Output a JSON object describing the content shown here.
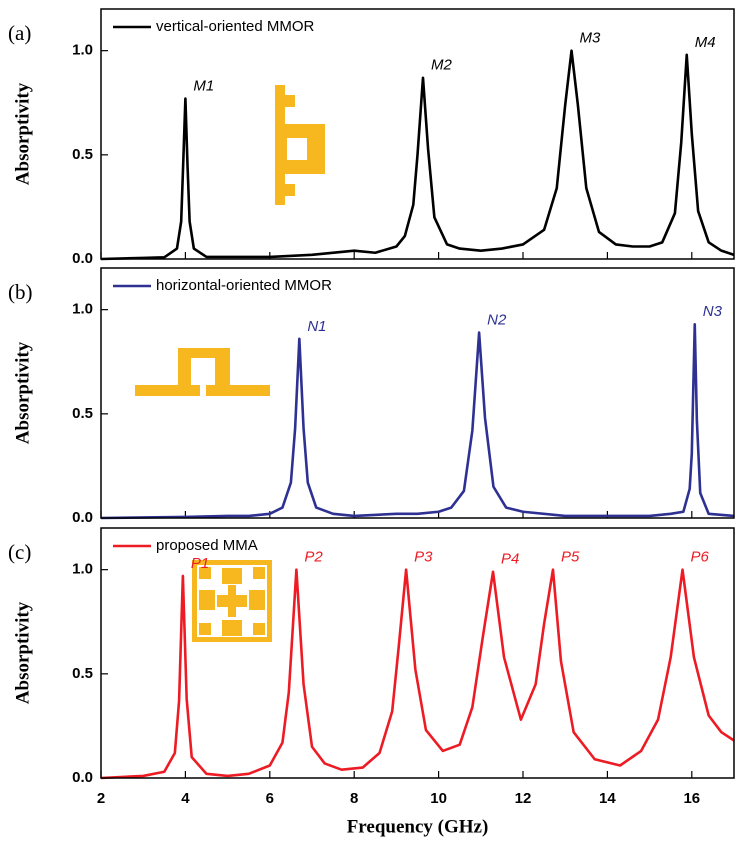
{
  "chart_data": [
    {
      "type": "line",
      "label": "(a)",
      "ylabel": "Absorptivity",
      "xlim": [
        2,
        17
      ],
      "ylim": [
        0,
        1.2
      ],
      "yticks": [
        {
          "value": 0,
          "label": "0.0"
        },
        {
          "value": 0.5,
          "label": "0.5"
        },
        {
          "value": 1,
          "label": "1.0"
        }
      ],
      "x": [
        2,
        3,
        3.5,
        3.8,
        3.9,
        3.95,
        4.0,
        4.05,
        4.1,
        4.2,
        4.5,
        5,
        6,
        7,
        8,
        8.5,
        9,
        9.2,
        9.4,
        9.5,
        9.63,
        9.75,
        9.9,
        10.2,
        10.5,
        11,
        11.5,
        12,
        12.5,
        12.8,
        13,
        13.15,
        13.3,
        13.5,
        13.8,
        14.2,
        14.6,
        15,
        15.3,
        15.6,
        15.75,
        15.88,
        16.0,
        16.15,
        16.4,
        16.7,
        17
      ],
      "series": [
        {
          "name": "vertical-oriented MMOR",
          "color": "#000000",
          "values": [
            0,
            0.005,
            0.008,
            0.05,
            0.18,
            0.47,
            0.77,
            0.45,
            0.18,
            0.05,
            0.01,
            0.01,
            0.01,
            0.02,
            0.04,
            0.03,
            0.06,
            0.11,
            0.26,
            0.5,
            0.87,
            0.53,
            0.2,
            0.07,
            0.05,
            0.04,
            0.05,
            0.07,
            0.14,
            0.34,
            0.74,
            1.0,
            0.74,
            0.34,
            0.13,
            0.07,
            0.06,
            0.06,
            0.08,
            0.22,
            0.56,
            0.98,
            0.6,
            0.23,
            0.08,
            0.04,
            0.02
          ]
        }
      ],
      "annotations": [
        {
          "text": "M1",
          "x": 4.0,
          "y": 0.77
        },
        {
          "text": "M2",
          "x": 9.63,
          "y": 0.87
        },
        {
          "text": "M3",
          "x": 13.15,
          "y": 1.0
        },
        {
          "text": "M4",
          "x": 15.88,
          "y": 0.98
        }
      ]
    },
    {
      "type": "line",
      "label": "(b)",
      "ylabel": "Absorptivity",
      "xlim": [
        2,
        17
      ],
      "ylim": [
        0,
        1.2
      ],
      "yticks": [
        {
          "value": 0,
          "label": "0.0"
        },
        {
          "value": 0.5,
          "label": "0.5"
        },
        {
          "value": 1,
          "label": "1.0"
        }
      ],
      "x": [
        2,
        4,
        5,
        5.5,
        6,
        6.3,
        6.5,
        6.6,
        6.7,
        6.8,
        6.9,
        7.1,
        7.5,
        8,
        9,
        9.5,
        10,
        10.3,
        10.6,
        10.8,
        10.96,
        11.1,
        11.3,
        11.6,
        12,
        13,
        14,
        15,
        15.5,
        15.8,
        15.95,
        16.0,
        16.07,
        16.12,
        16.2,
        16.4,
        17
      ],
      "series": [
        {
          "name": "horizontal-oriented MMOR",
          "color": "#2e3192",
          "values": [
            0,
            0.005,
            0.01,
            0.01,
            0.02,
            0.05,
            0.17,
            0.43,
            0.86,
            0.43,
            0.17,
            0.05,
            0.02,
            0.01,
            0.02,
            0.02,
            0.03,
            0.05,
            0.13,
            0.42,
            0.89,
            0.48,
            0.15,
            0.05,
            0.03,
            0.01,
            0.01,
            0.01,
            0.02,
            0.03,
            0.14,
            0.31,
            0.93,
            0.47,
            0.12,
            0.02,
            0.01
          ]
        }
      ],
      "annotations": [
        {
          "text": "N1",
          "x": 6.7,
          "y": 0.86
        },
        {
          "text": "N2",
          "x": 10.96,
          "y": 0.89
        },
        {
          "text": "N3",
          "x": 16.07,
          "y": 0.93
        }
      ]
    },
    {
      "type": "line",
      "label": "(c)",
      "ylabel": "Absorptivity",
      "xlabel": "Frequency (GHz)",
      "xlim": [
        2,
        17
      ],
      "ylim": [
        0,
        1.2
      ],
      "xticks": [
        2,
        4,
        6,
        8,
        10,
        12,
        14,
        16
      ],
      "yticks": [
        {
          "value": 0,
          "label": "0.0"
        },
        {
          "value": 0.5,
          "label": "0.5"
        },
        {
          "value": 1,
          "label": "1.0"
        }
      ],
      "x": [
        2,
        3,
        3.5,
        3.75,
        3.85,
        3.94,
        4.03,
        4.15,
        4.5,
        5,
        5.5,
        6,
        6.3,
        6.45,
        6.63,
        6.8,
        7.0,
        7.3,
        7.7,
        8.2,
        8.6,
        8.9,
        9.05,
        9.23,
        9.45,
        9.7,
        10.1,
        10.5,
        10.8,
        11.05,
        11.29,
        11.55,
        11.95,
        12.3,
        12.5,
        12.71,
        12.9,
        13.2,
        13.7,
        14.3,
        14.8,
        15.2,
        15.5,
        15.78,
        16.05,
        16.4,
        16.7,
        17
      ],
      "series": [
        {
          "name": "proposed MMA",
          "color": "#ed1c24",
          "values": [
            0,
            0.01,
            0.03,
            0.12,
            0.37,
            0.97,
            0.38,
            0.1,
            0.02,
            0.01,
            0.02,
            0.06,
            0.17,
            0.41,
            1.0,
            0.45,
            0.15,
            0.07,
            0.04,
            0.05,
            0.12,
            0.32,
            0.62,
            1.0,
            0.52,
            0.23,
            0.13,
            0.16,
            0.34,
            0.68,
            0.99,
            0.58,
            0.28,
            0.45,
            0.74,
            1.0,
            0.56,
            0.22,
            0.09,
            0.06,
            0.13,
            0.28,
            0.58,
            1.0,
            0.58,
            0.3,
            0.22,
            0.18
          ]
        }
      ],
      "annotations": [
        {
          "text": "P1",
          "x": 3.94,
          "y": 0.97
        },
        {
          "text": "P2",
          "x": 6.63,
          "y": 1.0
        },
        {
          "text": "P3",
          "x": 9.23,
          "y": 1.0
        },
        {
          "text": "P4",
          "x": 11.29,
          "y": 0.99
        },
        {
          "text": "P5",
          "x": 12.71,
          "y": 1.0
        },
        {
          "text": "P6",
          "x": 15.78,
          "y": 1.0
        }
      ]
    }
  ]
}
